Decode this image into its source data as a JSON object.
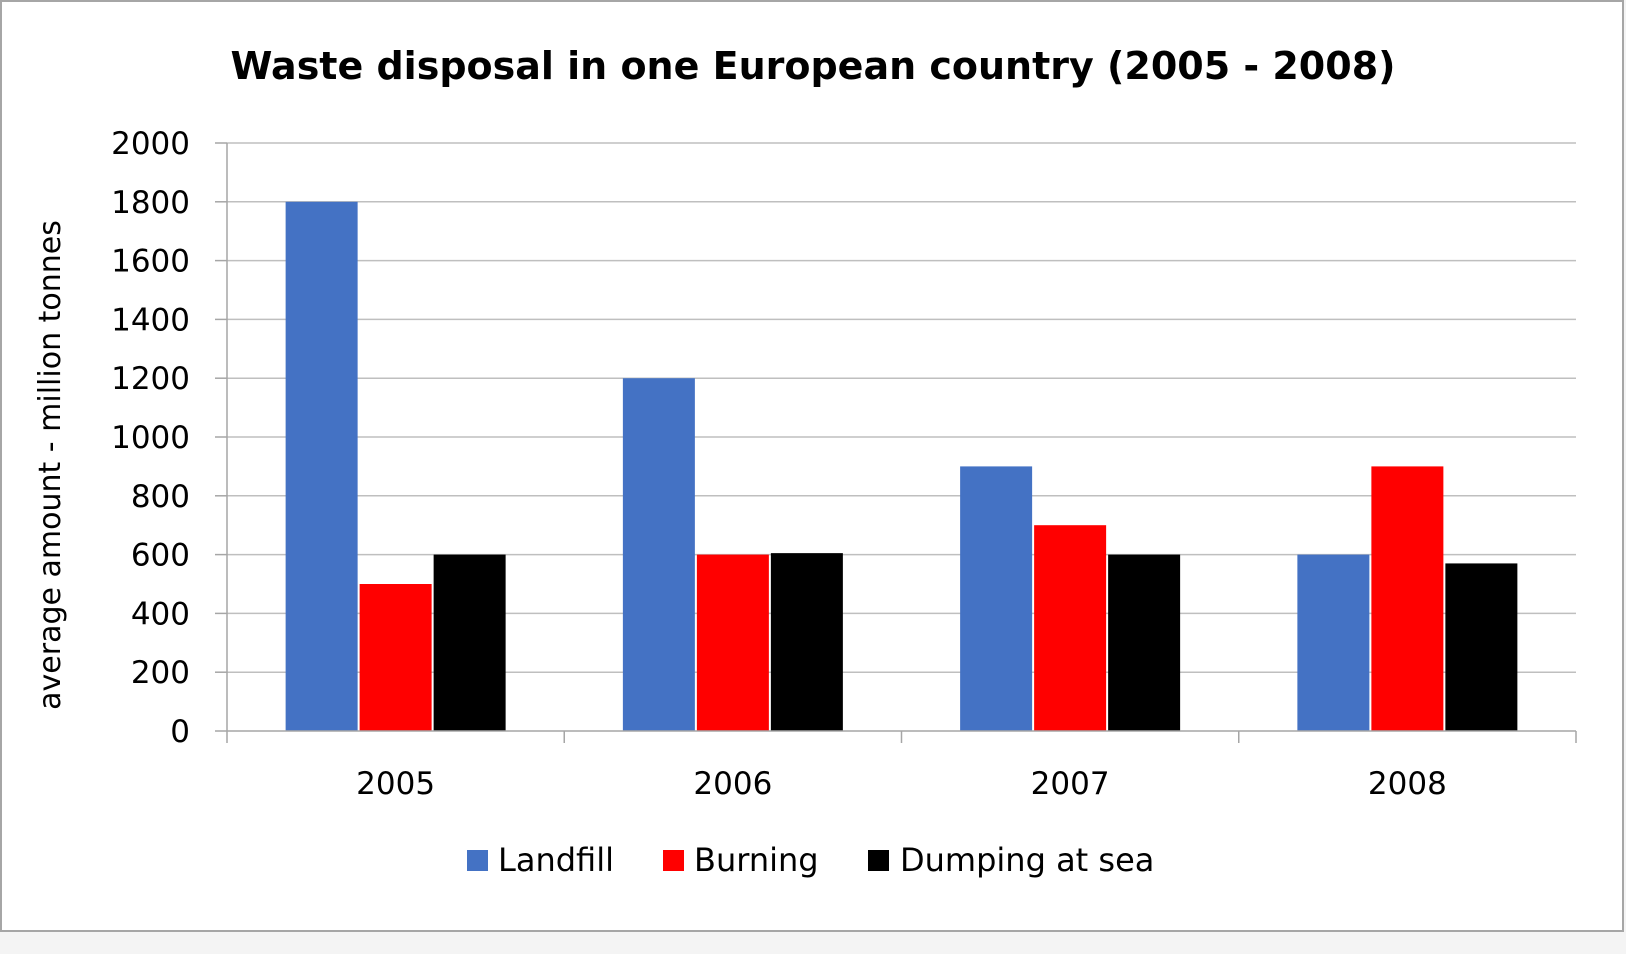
{
  "chart_data": {
    "type": "bar",
    "title": "Waste disposal in one European country (2005 - 2008)",
    "xlabel": "",
    "ylabel": "average amount - million tonnes",
    "categories": [
      "2005",
      "2006",
      "2007",
      "2008"
    ],
    "yticks": [
      "0",
      "200",
      "400",
      "600",
      "800",
      "1000",
      "1200",
      "1400",
      "1600",
      "1800",
      "2000"
    ],
    "ylim": [
      0,
      2000
    ],
    "grid": true,
    "legend_position": "bottom",
    "series": [
      {
        "name": "Landfill",
        "color": "#4472c4",
        "values": [
          1800,
          1200,
          900,
          600
        ]
      },
      {
        "name": "Burning",
        "color": "#ff0000",
        "values": [
          500,
          600,
          700,
          900
        ]
      },
      {
        "name": "Dumping at sea",
        "color": "#000000",
        "values": [
          600,
          605,
          600,
          570
        ]
      }
    ]
  }
}
